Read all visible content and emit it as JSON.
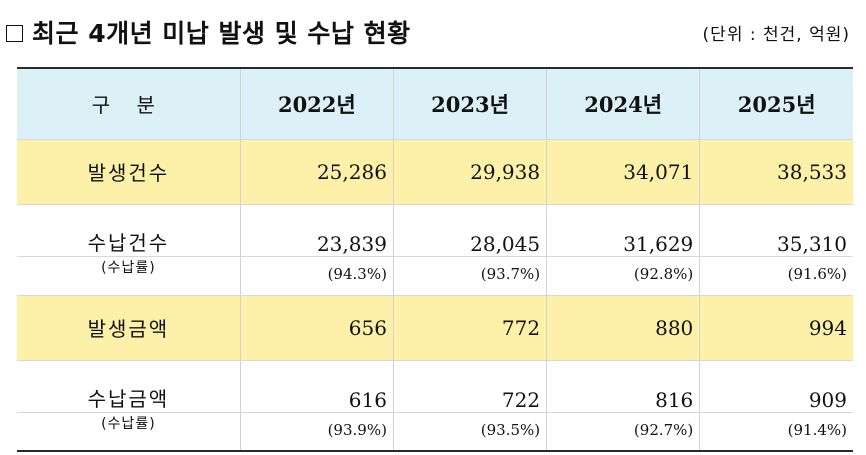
{
  "title": {
    "checkbox_glyph": "□",
    "text": "최근 4개년 미납 발생 및 수납 현황",
    "unit": "(단위 : 천건, 억원)"
  },
  "table": {
    "header": {
      "category": "구 분",
      "years": [
        "2022년",
        "2023년",
        "2024년",
        "2025년"
      ]
    },
    "rows": [
      {
        "label": "발생건수",
        "values": [
          "25,286",
          "29,938",
          "34,071",
          "38,533"
        ]
      },
      {
        "label": "수납건수",
        "values": [
          "23,839",
          "28,045",
          "31,629",
          "35,310"
        ]
      },
      {
        "label": "(수납률)",
        "values": [
          "(94.3%)",
          "(93.7%)",
          "(92.8%)",
          "(91.6%)"
        ]
      },
      {
        "label": "발생금액",
        "values": [
          "656",
          "772",
          "880",
          "994"
        ]
      },
      {
        "label": "수납금액",
        "values": [
          "616",
          "722",
          "816",
          "909"
        ]
      },
      {
        "label": "(수납률)",
        "values": [
          "(93.9%)",
          "(93.5%)",
          "(92.7%)",
          "(91.4%)"
        ]
      }
    ]
  },
  "colors": {
    "header_bg": "#dcf0f7",
    "highlight_bg": "#fdf1a9"
  }
}
